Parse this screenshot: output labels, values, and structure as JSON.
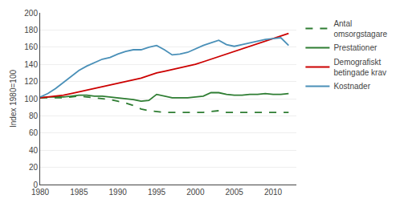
{
  "chart_data": {
    "type": "line",
    "ylabel": "Index 1980=100",
    "x": [
      1980,
      1981,
      1982,
      1983,
      1984,
      1985,
      1986,
      1987,
      1988,
      1989,
      1990,
      1991,
      1992,
      1993,
      1994,
      1995,
      1996,
      1997,
      1998,
      1999,
      2000,
      2001,
      2002,
      2003,
      2004,
      2005,
      2006,
      2007,
      2008,
      2009,
      2010,
      2011,
      2012
    ],
    "series": [
      {
        "name": "Antal\nomsorgstagare",
        "color": "#2e7d32",
        "line_style": "dashed",
        "values": [
          101,
          101,
          101,
          101,
          102,
          103,
          102,
          101,
          100,
          99,
          97,
          95,
          92,
          88,
          86,
          85,
          84,
          84,
          84,
          84,
          84,
          84,
          85,
          86,
          84,
          84,
          84,
          84,
          84,
          84,
          84,
          84,
          84
        ]
      },
      {
        "name": "Prestationer",
        "color": "#2e7d32",
        "line_style": "solid",
        "values": [
          101,
          102,
          102,
          102,
          103,
          104,
          104,
          103,
          103,
          102,
          101,
          100,
          99,
          97,
          98,
          105,
          103,
          101,
          101,
          101,
          102,
          103,
          107,
          107,
          105,
          104,
          104,
          105,
          105,
          106,
          105,
          105,
          106
        ]
      },
      {
        "name": "Demografiskt\nbetingade krav",
        "color": "#cc0000",
        "line_style": "solid",
        "values": [
          101,
          102,
          103,
          104,
          106,
          108,
          110,
          112,
          114,
          116,
          118,
          120,
          122,
          124,
          127,
          130,
          132,
          134,
          136,
          138,
          140,
          143,
          146,
          149,
          152,
          155,
          158,
          161,
          164,
          167,
          170,
          173,
          176
        ]
      },
      {
        "name": "Kostnader",
        "color": "#4a90b8",
        "line_style": "solid",
        "values": [
          102,
          106,
          112,
          119,
          126,
          133,
          138,
          142,
          146,
          148,
          152,
          155,
          157,
          157,
          160,
          162,
          157,
          151,
          152,
          154,
          158,
          162,
          165,
          168,
          163,
          161,
          163,
          165,
          167,
          169,
          170,
          171,
          162
        ]
      }
    ],
    "xlim": [
      1980,
      2013
    ],
    "xticks": [
      1980,
      1985,
      1990,
      1995,
      2000,
      2005,
      2010
    ],
    "ylim": [
      0,
      200
    ],
    "yticks": [
      0,
      20,
      40,
      60,
      80,
      100,
      120,
      140,
      160,
      180,
      200
    ],
    "grid": true,
    "legend": "right"
  }
}
